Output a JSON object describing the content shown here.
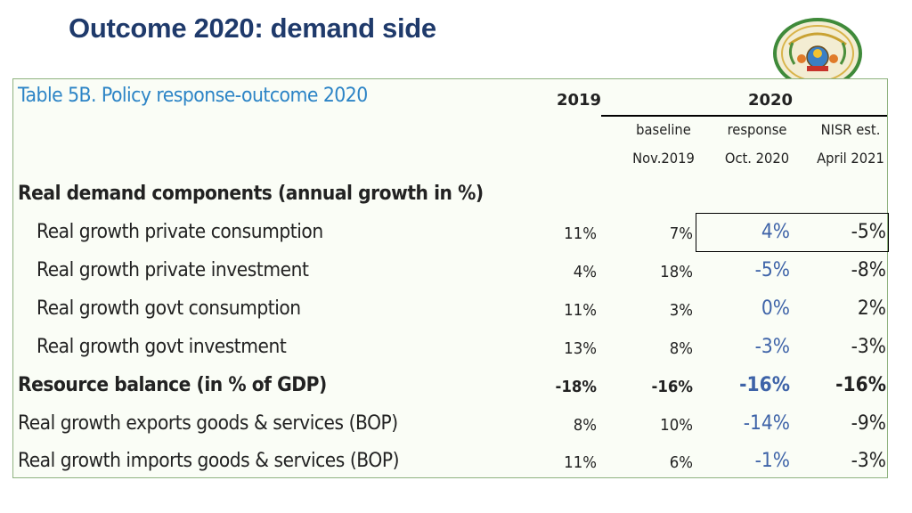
{
  "slide": {
    "title": "Outcome 2020: demand side"
  },
  "table": {
    "title": "Table 5B. Policy response-outcome 2020",
    "years": [
      "2019",
      "2020"
    ],
    "columns": [
      {
        "line1": "baseline",
        "line2": "Nov.2019"
      },
      {
        "line1": "response",
        "line2": "Oct. 2020"
      },
      {
        "line1": "NISR est.",
        "line2": "April 2021"
      }
    ],
    "rows": [
      {
        "label": "Real demand components (annual growth in %)",
        "bold": true,
        "values": [
          "",
          "",
          "",
          ""
        ]
      },
      {
        "label": "Real growth private consumption",
        "values": [
          "11%",
          "7%",
          "4%",
          "-5%"
        ]
      },
      {
        "label": "Real growth private investment",
        "values": [
          "4%",
          "18%",
          "-5%",
          "-8%"
        ]
      },
      {
        "label": "Real growth govt consumption",
        "values": [
          "11%",
          "3%",
          "0%",
          "2%"
        ]
      },
      {
        "label": "Real growth govt investment",
        "values": [
          "13%",
          "8%",
          "-3%",
          "-3%"
        ]
      },
      {
        "label": "Resource balance (in % of GDP)",
        "bold": true,
        "values": [
          "-18%",
          "-16%",
          "-16%",
          "-16%"
        ]
      },
      {
        "label": "Real growth exports goods & services (BOP)",
        "values": [
          "8%",
          "10%",
          "-14%",
          "-9%"
        ]
      },
      {
        "label": "Real growth imports goods & services (BOP)",
        "values": [
          "11%",
          "6%",
          "-1%",
          "-3%"
        ]
      }
    ]
  },
  "colors": {
    "title": "#1f3a6b",
    "table_title": "#2c84c6",
    "response": "#3e63a8",
    "border": "#8fb27f"
  },
  "emblem": {
    "icon": "coat-of-arms-icon"
  }
}
